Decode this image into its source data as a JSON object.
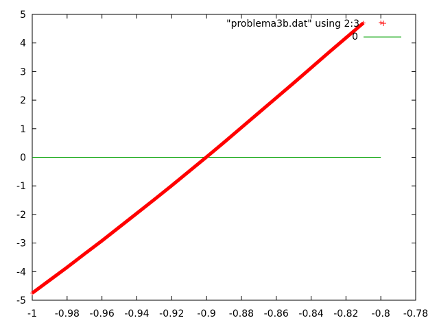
{
  "chart_data": {
    "type": "scatter",
    "title": "",
    "xlabel": "",
    "ylabel": "",
    "xlim": [
      -1,
      -0.78
    ],
    "ylim": [
      -5,
      5
    ],
    "x_ticks": [
      "-1",
      "-0.98",
      "-0.96",
      "-0.94",
      "-0.92",
      "-0.9",
      "-0.88",
      "-0.86",
      "-0.84",
      "-0.82",
      "-0.8",
      "-0.78"
    ],
    "y_ticks": [
      "5",
      "4",
      "3",
      "2",
      "1",
      "0",
      "-1",
      "-2",
      "-3",
      "-4",
      "-5"
    ],
    "grid": false,
    "legend_position": "top-right",
    "series": [
      {
        "name": "\"problema3b.dat\" using 2:3",
        "color": "#ff0000",
        "marker": "plus",
        "x": [
          -1,
          -0.99,
          -0.98,
          -0.97,
          -0.96,
          -0.95,
          -0.94,
          -0.93,
          -0.92,
          -0.91,
          -0.9,
          -0.89,
          -0.88,
          -0.87,
          -0.86,
          -0.85,
          -0.84,
          -0.83,
          -0.82,
          -0.81,
          -0.8
        ],
        "y": [
          -4.75,
          -4.3,
          -3.85,
          -3.38,
          -2.92,
          -2.44,
          -1.96,
          -1.48,
          -0.99,
          -0.49,
          0.01,
          0.52,
          1.04,
          1.56,
          2.08,
          2.6,
          3.13,
          3.66,
          4.18,
          4.7,
          4.71
        ]
      },
      {
        "name": "0",
        "color": "#00a000",
        "marker": "line",
        "x": [
          -1,
          -0.8
        ],
        "y": [
          0,
          0
        ]
      }
    ]
  }
}
